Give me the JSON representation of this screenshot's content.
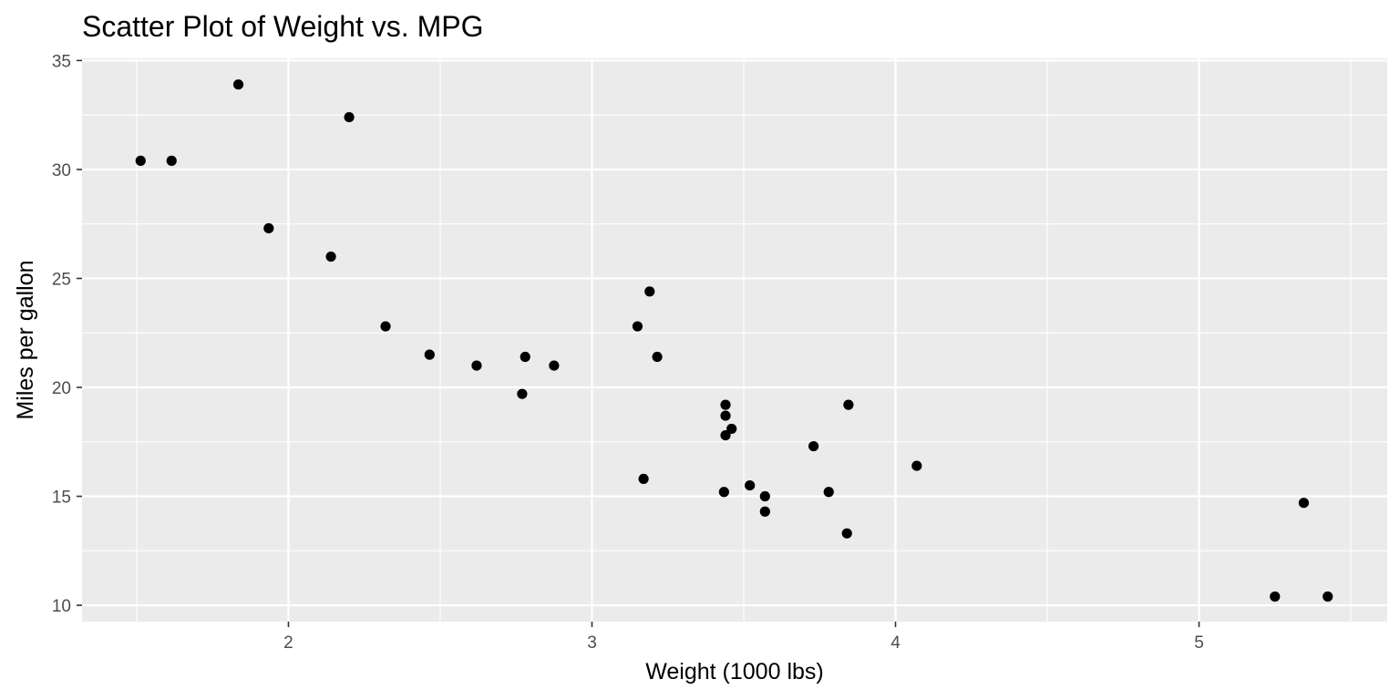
{
  "chart_data": {
    "type": "scatter",
    "title": "Scatter Plot of Weight vs. MPG",
    "xlabel": "Weight (1000 lbs)",
    "ylabel": "Miles per gallon",
    "xlim": [
      1.32,
      5.62
    ],
    "ylim": [
      9.25,
      35.1
    ],
    "x_ticks": [
      2,
      3,
      4,
      5
    ],
    "x_tick_labels": [
      "2",
      "3",
      "4",
      "5"
    ],
    "x_minor_ticks": [
      1.5,
      2.5,
      3.5,
      4.5,
      5.5
    ],
    "y_ticks": [
      10,
      15,
      20,
      25,
      30,
      35
    ],
    "y_tick_labels": [
      "10",
      "15",
      "20",
      "25",
      "30",
      "35"
    ],
    "y_minor_ticks": [
      12.5,
      17.5,
      22.5,
      27.5,
      32.5
    ],
    "grid": true,
    "legend": "none",
    "colors": {
      "panel_background": "#ebebeb",
      "grid_line": "#ffffff",
      "point": "#000000",
      "tick_label": "#4d4d4d",
      "tick_mark": "#333333"
    },
    "points": [
      {
        "x": 2.62,
        "y": 21.0
      },
      {
        "x": 2.875,
        "y": 21.0
      },
      {
        "x": 2.32,
        "y": 22.8
      },
      {
        "x": 3.215,
        "y": 21.4
      },
      {
        "x": 3.44,
        "y": 18.7
      },
      {
        "x": 3.46,
        "y": 18.1
      },
      {
        "x": 3.57,
        "y": 14.3
      },
      {
        "x": 3.19,
        "y": 24.4
      },
      {
        "x": 3.15,
        "y": 22.8
      },
      {
        "x": 3.44,
        "y": 19.2
      },
      {
        "x": 3.44,
        "y": 17.8
      },
      {
        "x": 4.07,
        "y": 16.4
      },
      {
        "x": 3.73,
        "y": 17.3
      },
      {
        "x": 3.78,
        "y": 15.2
      },
      {
        "x": 5.25,
        "y": 10.4
      },
      {
        "x": 5.424,
        "y": 10.4
      },
      {
        "x": 5.345,
        "y": 14.7
      },
      {
        "x": 2.2,
        "y": 32.4
      },
      {
        "x": 1.615,
        "y": 30.4
      },
      {
        "x": 1.835,
        "y": 33.9
      },
      {
        "x": 2.465,
        "y": 21.5
      },
      {
        "x": 3.52,
        "y": 15.5
      },
      {
        "x": 3.435,
        "y": 15.2
      },
      {
        "x": 3.84,
        "y": 13.3
      },
      {
        "x": 3.845,
        "y": 19.2
      },
      {
        "x": 1.935,
        "y": 27.3
      },
      {
        "x": 2.14,
        "y": 26.0
      },
      {
        "x": 1.513,
        "y": 30.4
      },
      {
        "x": 3.17,
        "y": 15.8
      },
      {
        "x": 2.77,
        "y": 19.7
      },
      {
        "x": 3.57,
        "y": 15.0
      },
      {
        "x": 2.78,
        "y": 21.4
      }
    ]
  }
}
